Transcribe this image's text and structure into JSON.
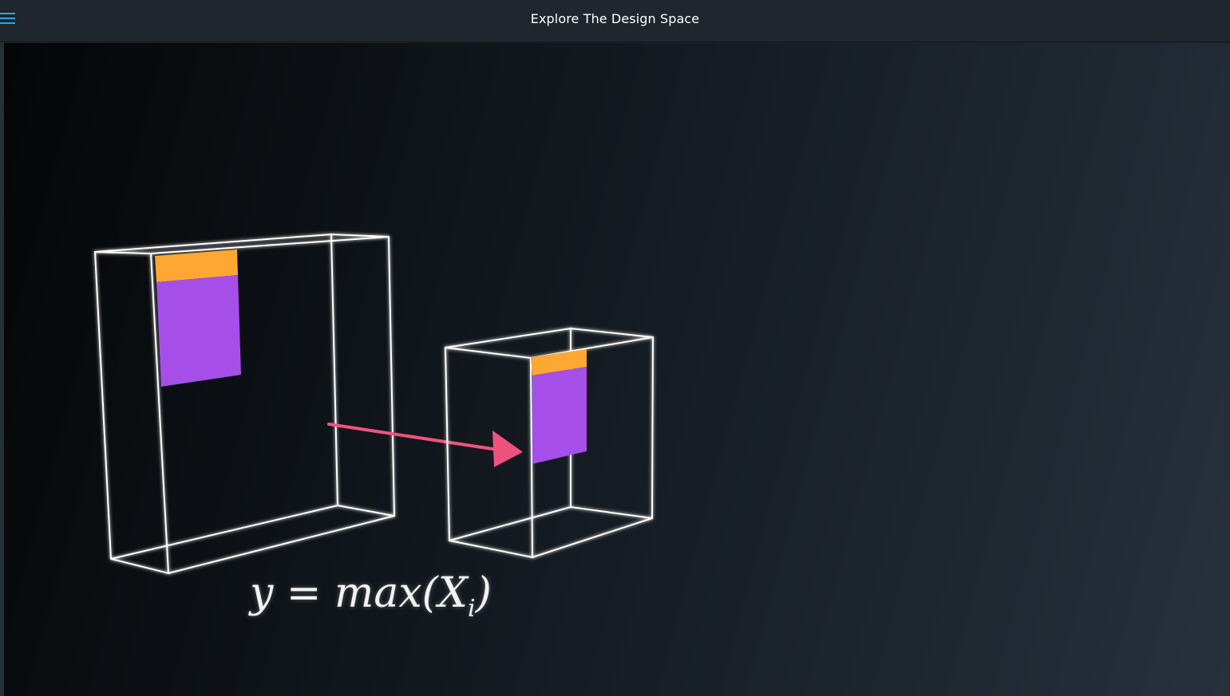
{
  "header": {
    "title": "Explore The Design Space",
    "menu_icon": "hamburger-menu-icon",
    "accent_color": "#2aa7e0"
  },
  "figure": {
    "equation_main": "y = max(X",
    "equation_sub": "i",
    "equation_close": ")",
    "colors": {
      "highlight_orange": "#ffa733",
      "region_purple": "#a54fe8",
      "arrow_pink": "#f0527f",
      "box_stroke": "#ffffff"
    }
  }
}
